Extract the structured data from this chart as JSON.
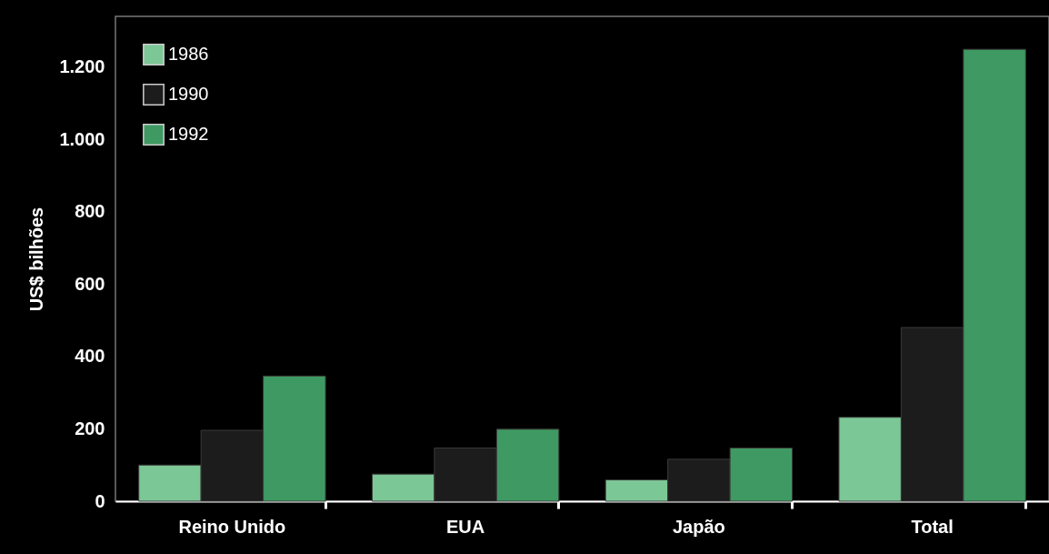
{
  "chart_data": {
    "type": "bar",
    "ylabel": "US$ bilhões",
    "categories": [
      "Reino Unido",
      "EUA",
      "Japão",
      "Total"
    ],
    "series": [
      {
        "name": "1986",
        "color": "#7cc796",
        "values": [
          100,
          75,
          59,
          232
        ]
      },
      {
        "name": "1990",
        "color": "#1c1c1c",
        "values": [
          196,
          147,
          116,
          480
        ]
      },
      {
        "name": "1992",
        "color": "#3e9a62",
        "values": [
          346,
          199,
          147,
          1249
        ]
      }
    ],
    "ylim": [
      0,
      1340
    ],
    "yticks": [
      0,
      200,
      400,
      600,
      800,
      {
        "value": 1000,
        "label": "1.000"
      },
      {
        "value": 1200,
        "label": "1.200"
      }
    ],
    "grid": false,
    "legend": "top left"
  }
}
